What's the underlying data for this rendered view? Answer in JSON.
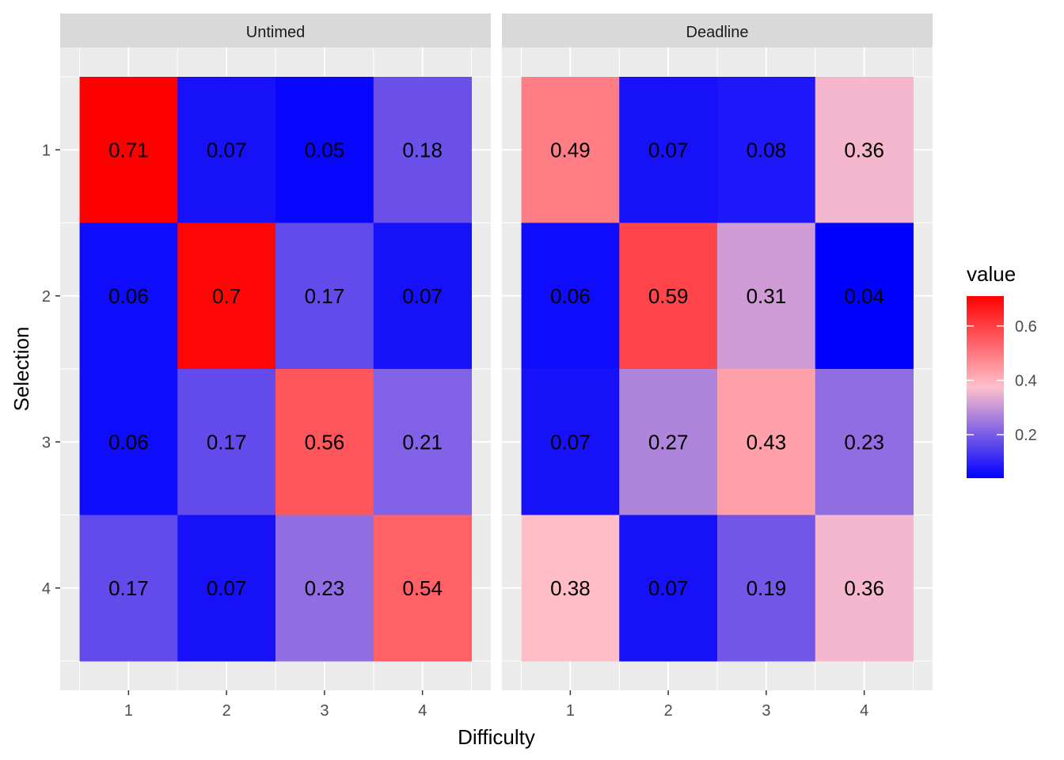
{
  "chart_data": {
    "type": "heatmap",
    "xlabel": "Difficulty",
    "ylabel": "Selection",
    "x_categories": [
      "1",
      "2",
      "3",
      "4"
    ],
    "y_categories": [
      "1",
      "2",
      "3",
      "4"
    ],
    "facets": [
      {
        "label": "Untimed",
        "values": [
          [
            0.71,
            0.07,
            0.05,
            0.18
          ],
          [
            0.06,
            0.7,
            0.17,
            0.07
          ],
          [
            0.06,
            0.17,
            0.56,
            0.21
          ],
          [
            0.17,
            0.07,
            0.23,
            0.54
          ]
        ],
        "labels": [
          [
            "0.71",
            "0.07",
            "0.05",
            "0.18"
          ],
          [
            "0.06",
            "0.7",
            "0.17",
            "0.07"
          ],
          [
            "0.06",
            "0.17",
            "0.56",
            "0.21"
          ],
          [
            "0.17",
            "0.07",
            "0.23",
            "0.54"
          ]
        ]
      },
      {
        "label": "Deadline",
        "values": [
          [
            0.49,
            0.07,
            0.08,
            0.36
          ],
          [
            0.06,
            0.59,
            0.31,
            0.04
          ],
          [
            0.07,
            0.27,
            0.43,
            0.23
          ],
          [
            0.38,
            0.07,
            0.19,
            0.36
          ]
        ],
        "labels": [
          [
            "0.49",
            "0.07",
            "0.08",
            "0.36"
          ],
          [
            "0.06",
            "0.59",
            "0.31",
            "0.04"
          ],
          [
            "0.07",
            "0.27",
            "0.43",
            "0.23"
          ],
          [
            "0.38",
            "0.07",
            "0.19",
            "0.36"
          ]
        ]
      }
    ],
    "legend": {
      "title": "value",
      "ticks": [
        "0.2",
        "0.4",
        "0.6"
      ],
      "tick_values": [
        0.2,
        0.4,
        0.6
      ],
      "range": [
        0.04,
        0.71
      ],
      "colors": {
        "low": "#0000ff",
        "mid": "#ffc0cb",
        "high": "#ff0000"
      },
      "midpoint": 0.375
    },
    "grid": true,
    "legend_position": "right"
  },
  "colors": {
    "panel_bg": "#ebebeb",
    "grid": "#ffffff",
    "strip_bg": "#d9d9d9"
  }
}
